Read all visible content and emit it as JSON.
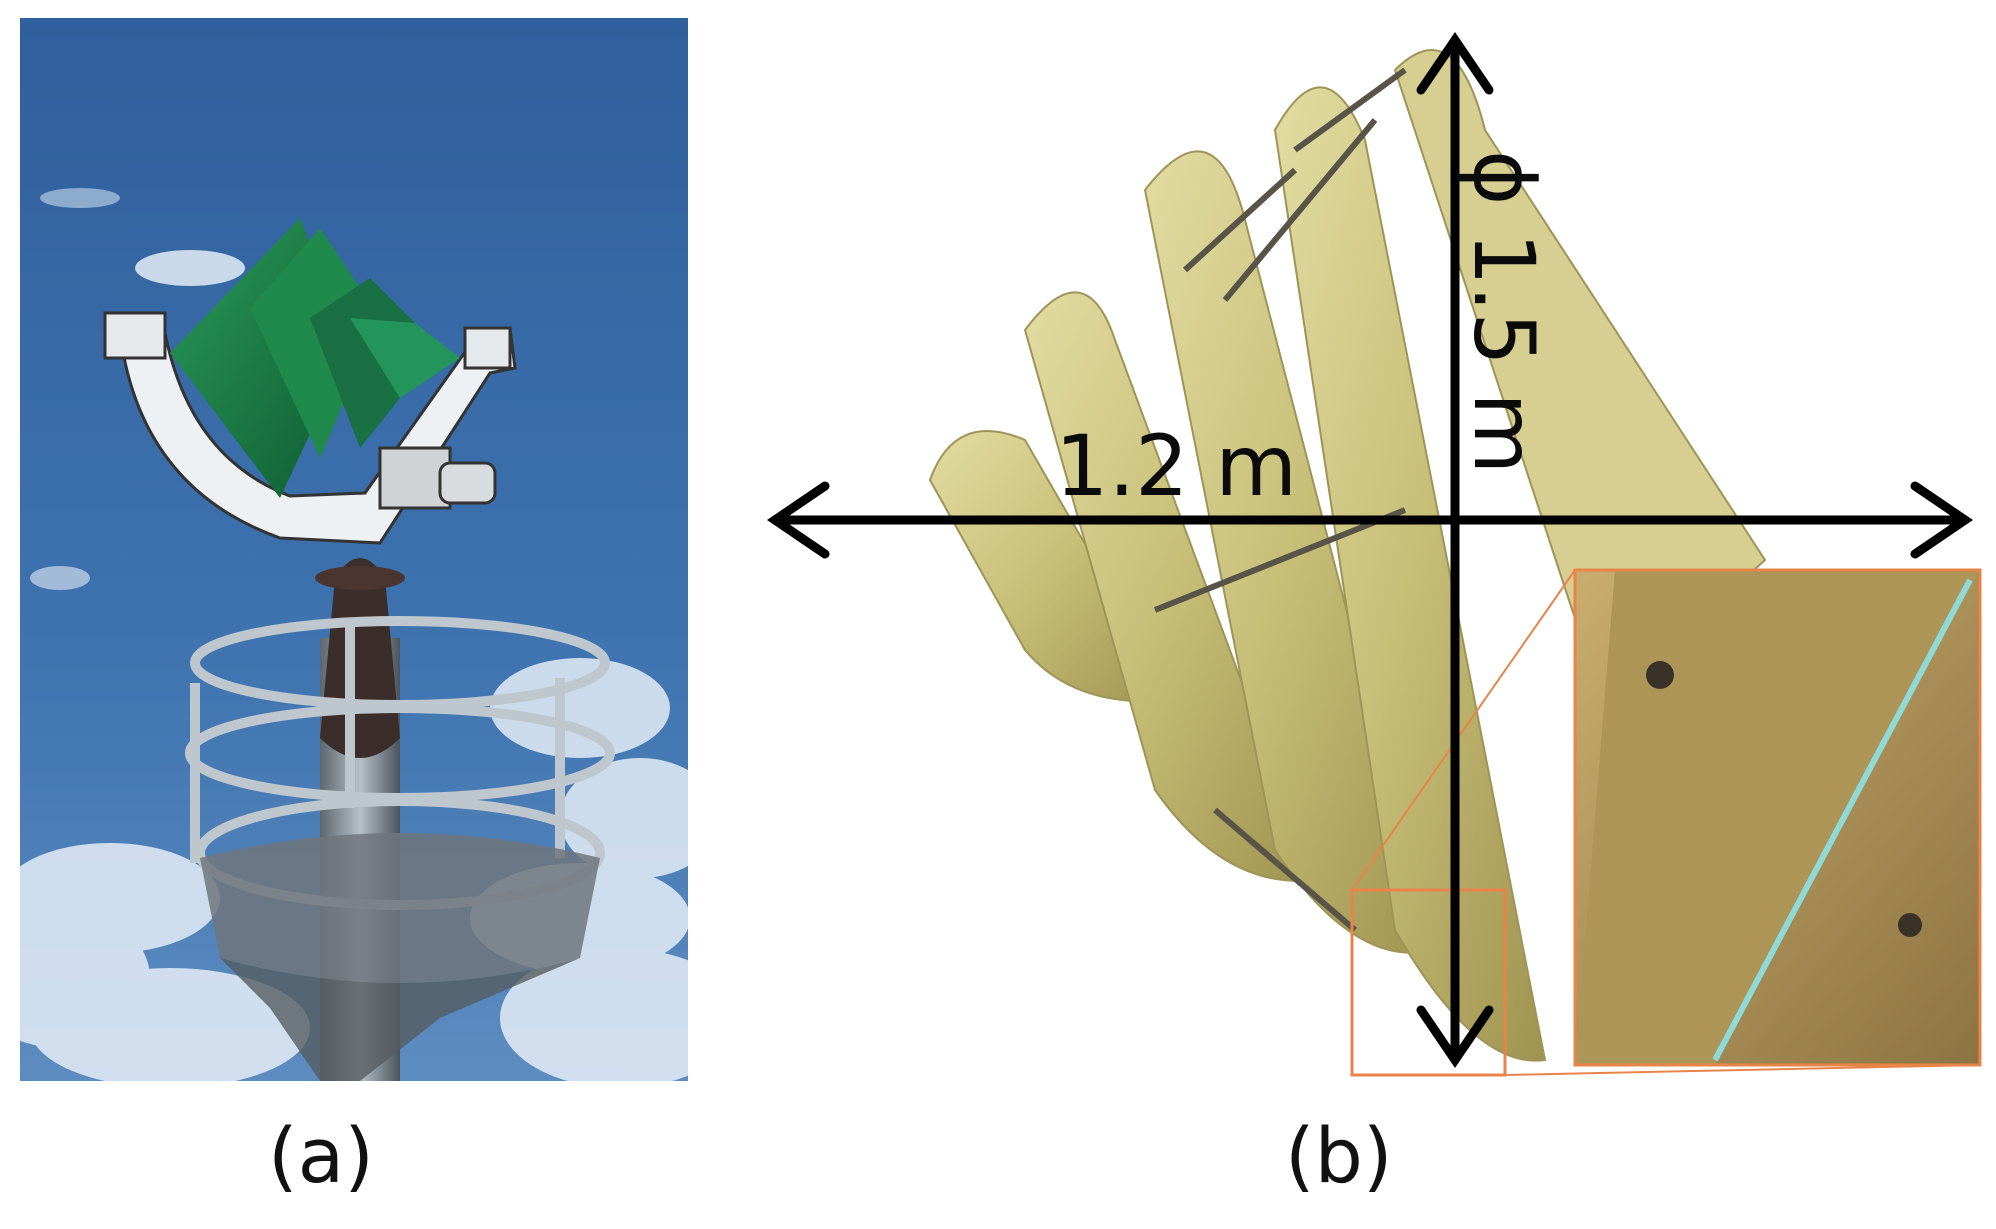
{
  "panels": [
    {
      "caption": "(a)"
    },
    {
      "caption": "(b)"
    }
  ],
  "dimensions": {
    "width_label": "1.2 m",
    "height_label": "ϕ 1.5 m"
  },
  "colors": {
    "sky": "#3f6fa8",
    "rotor_green": "#1d7a45",
    "blade_yellow": "#c9c17a",
    "zoom_box": "#e8844a",
    "arrow": "#000000"
  }
}
